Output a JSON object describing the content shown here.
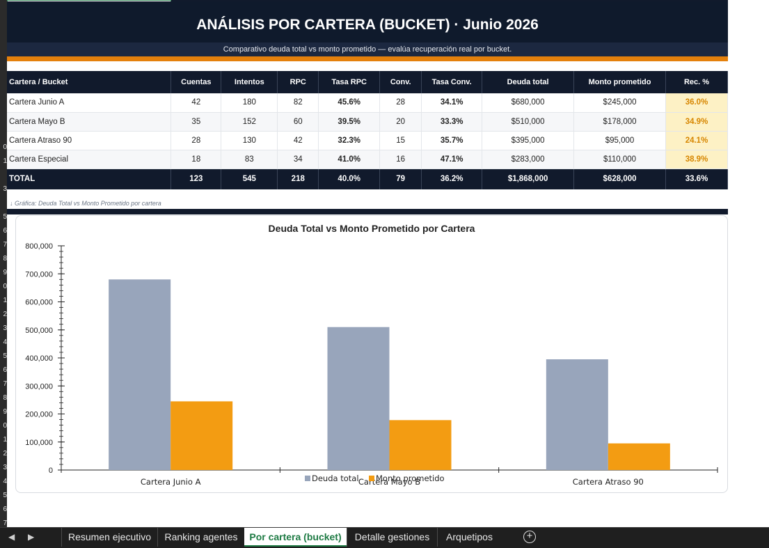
{
  "row_numbers": [
    "",
    "",
    "",
    "",
    "",
    "",
    "",
    "",
    "",
    "",
    "0",
    "1",
    "",
    "3",
    "",
    "5",
    "6",
    "7",
    "8",
    "9",
    "0",
    "1",
    "2",
    "3",
    "4",
    "5",
    "6",
    "7",
    "8",
    "9",
    "0",
    "1",
    "2",
    "3",
    "4",
    "5",
    "6",
    "7"
  ],
  "banner": {
    "title": "ANÁLISIS POR CARTERA (BUCKET)  ·  Junio 2026",
    "subtitle": "Comparativo deuda total vs monto prometido — evalúa recuperación real por bucket."
  },
  "table": {
    "headers": [
      "Cartera / Bucket",
      "Cuentas",
      "Intentos",
      "RPC",
      "Tasa RPC",
      "Conv.",
      "Tasa Conv.",
      "Deuda total",
      "Monto prometido",
      "Rec. %"
    ],
    "rows": [
      [
        "Cartera Junio A",
        "42",
        "180",
        "82",
        "45.6%",
        "28",
        "34.1%",
        "$680,000",
        "$245,000",
        "36.0%"
      ],
      [
        "Cartera Mayo B",
        "35",
        "152",
        "60",
        "39.5%",
        "20",
        "33.3%",
        "$510,000",
        "$178,000",
        "34.9%"
      ],
      [
        "Cartera Atraso 90",
        "28",
        "130",
        "42",
        "32.3%",
        "15",
        "35.7%",
        "$395,000",
        "$95,000",
        "24.1%"
      ],
      [
        "Cartera Especial",
        "18",
        "83",
        "34",
        "41.0%",
        "16",
        "47.1%",
        "$283,000",
        "$110,000",
        "38.9%"
      ]
    ],
    "total": [
      "TOTAL",
      "123",
      "545",
      "218",
      "40.0%",
      "79",
      "36.2%",
      "$1,868,000",
      "$628,000",
      "33.6%"
    ]
  },
  "chart_note": "↓ Gráfica: Deuda Total vs Monto Prometido por cartera",
  "chart_data": {
    "type": "bar",
    "title": "Deuda Total vs Monto Prometido por Cartera",
    "categories": [
      "Cartera Junio A",
      "Cartera Mayo B",
      "Cartera Atraso 90"
    ],
    "series": [
      {
        "name": "Deuda total",
        "values": [
          680000,
          510000,
          395000
        ],
        "color": "#98a5bb"
      },
      {
        "name": "Monto prometido",
        "values": [
          245000,
          178000,
          95000
        ],
        "color": "#f39c12"
      }
    ],
    "yticks": [
      "0",
      "100,000",
      "200,000",
      "300,000",
      "400,000",
      "500,000",
      "600,000",
      "700,000",
      "800,000"
    ],
    "ylim": [
      0,
      800000
    ],
    "legend": "bottom",
    "grid": false
  },
  "tabs": [
    {
      "label": "Resumen ejecutivo",
      "active": false
    },
    {
      "label": "Ranking agentes",
      "active": false
    },
    {
      "label": "Por cartera (bucket)",
      "active": true
    },
    {
      "label": "Detalle gestiones",
      "active": false
    },
    {
      "label": "Arquetipos",
      "active": false
    }
  ],
  "icons": {
    "prev": "prev-sheet-icon",
    "next": "next-sheet-icon",
    "add": "add-sheet-icon"
  }
}
